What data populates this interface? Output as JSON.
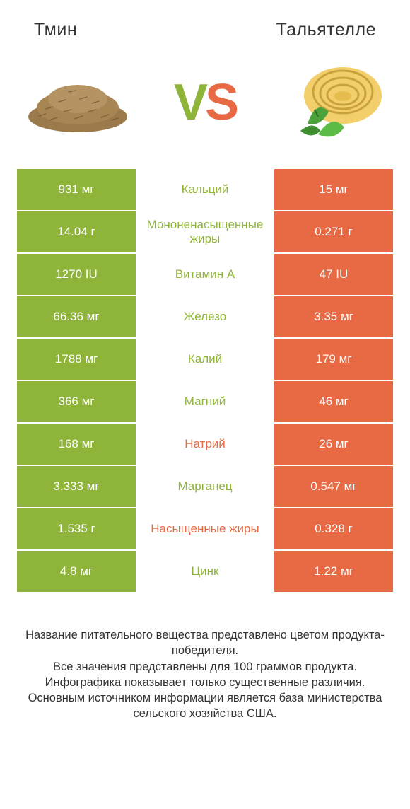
{
  "colors": {
    "green": "#8fb43a",
    "orange": "#e86a44",
    "vs_v": "#8fb43a",
    "vs_s": "#e86a44",
    "bg": "#ffffff",
    "text": "#333333"
  },
  "header": {
    "left_title": "Тмин",
    "right_title": "Тальятелле"
  },
  "vs": {
    "v": "V",
    "s": "S"
  },
  "rows": [
    {
      "left": "931 мг",
      "mid": "Кальций",
      "right": "15 мг",
      "mid_color": "green"
    },
    {
      "left": "14.04 г",
      "mid": "Мононенасыщенные жиры",
      "right": "0.271 г",
      "mid_color": "green"
    },
    {
      "left": "1270 IU",
      "mid": "Витамин A",
      "right": "47 IU",
      "mid_color": "green"
    },
    {
      "left": "66.36 мг",
      "mid": "Железо",
      "right": "3.35 мг",
      "mid_color": "green"
    },
    {
      "left": "1788 мг",
      "mid": "Калий",
      "right": "179 мг",
      "mid_color": "green"
    },
    {
      "left": "366 мг",
      "mid": "Магний",
      "right": "46 мг",
      "mid_color": "green"
    },
    {
      "left": "168 мг",
      "mid": "Натрий",
      "right": "26 мг",
      "mid_color": "orange"
    },
    {
      "left": "3.333 мг",
      "mid": "Марганец",
      "right": "0.547 мг",
      "mid_color": "green"
    },
    {
      "left": "1.535 г",
      "mid": "Насыщенные жиры",
      "right": "0.328 г",
      "mid_color": "orange"
    },
    {
      "left": "4.8 мг",
      "mid": "Цинк",
      "right": "1.22 мг",
      "mid_color": "green"
    }
  ],
  "footer_lines": [
    "Название питательного вещества представлено цветом продукта-победителя.",
    "Все значения представлены для 100 граммов продукта.",
    "Инфографика показывает только существенные различия.",
    "Основным источником информации является база министерства сельского хозяйства США."
  ]
}
